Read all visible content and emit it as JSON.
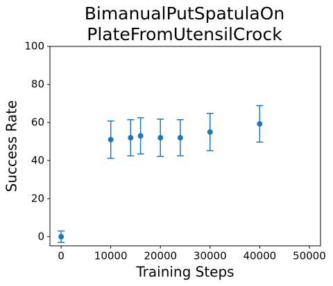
{
  "chart_data": {
    "type": "scatter",
    "title": [
      "BimanualPutSpatulaOn",
      "PlateFromUtensilCrock"
    ],
    "x_label": "Training Steps",
    "y_label": "Success Rate",
    "x": [
      0,
      10000,
      14000,
      16000,
      20000,
      24000,
      30000,
      40000
    ],
    "series": [
      {
        "color": "#1f77b4",
        "values": [
          0,
          51,
          52,
          53,
          52,
          52,
          55,
          59.3
        ],
        "errors": [
          3,
          9.8,
          9.5,
          9.5,
          9.8,
          9.5,
          9.8,
          9.6
        ]
      }
    ],
    "xlim": [
      -2250,
      52250
    ],
    "ylim": [
      -4.8,
      100
    ],
    "xticks": [
      0,
      10000,
      20000,
      30000,
      40000,
      50000
    ],
    "yticks": [
      0,
      20,
      40,
      60,
      80,
      100
    ]
  }
}
